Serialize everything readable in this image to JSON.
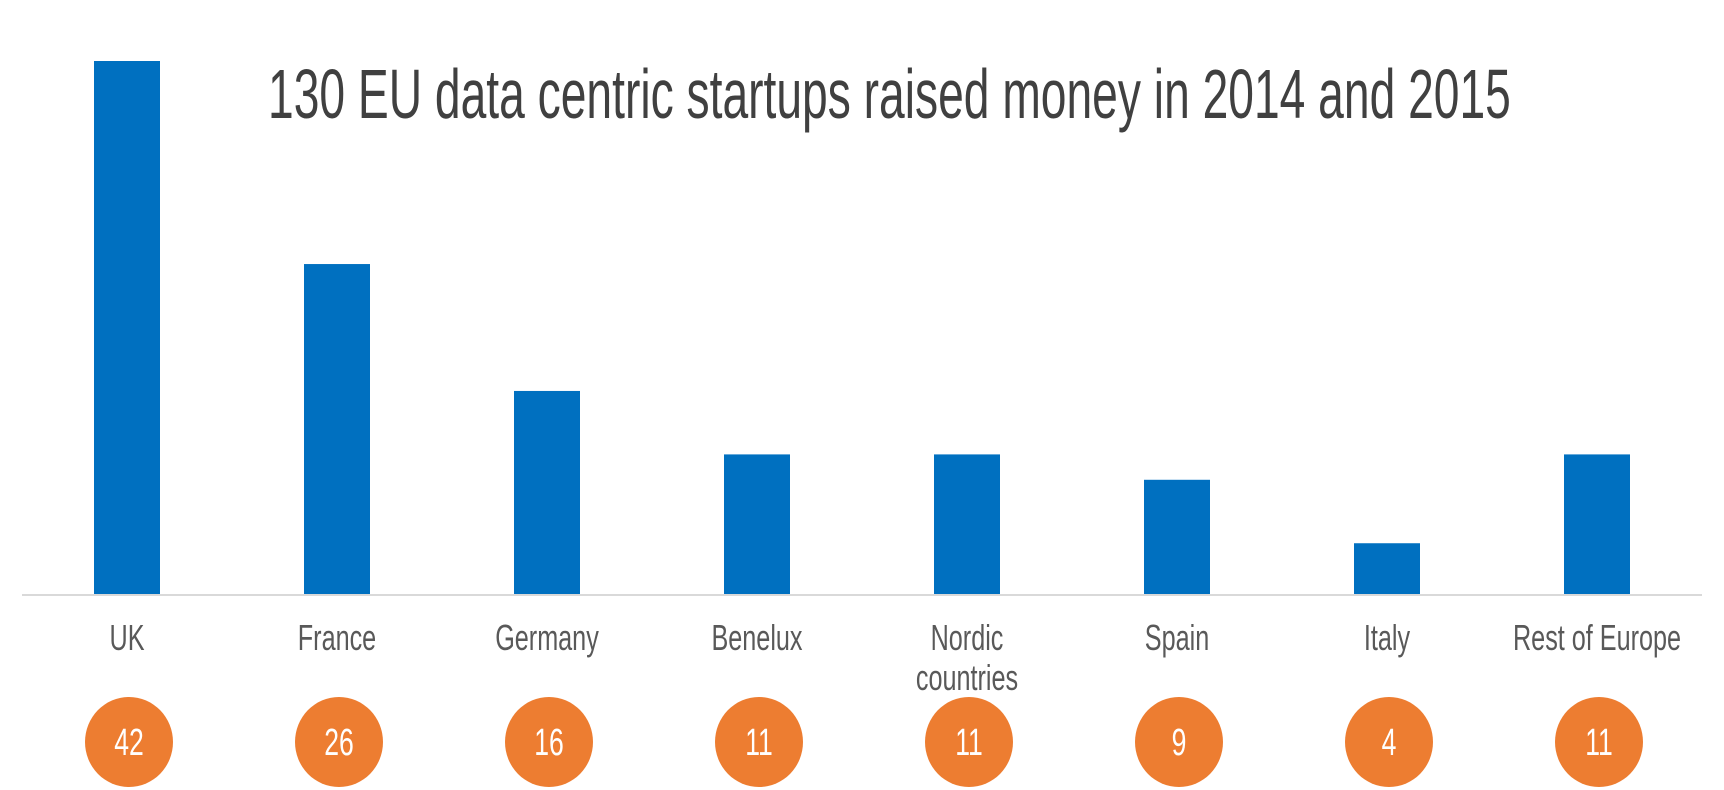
{
  "chart_data": {
    "type": "bar",
    "title": "130 EU data centric startups raised money in 2014 and 2015",
    "xlabel": "",
    "ylabel": "",
    "ylim": [
      0,
      42
    ],
    "grid": false,
    "legend": "none",
    "categories": [
      "UK",
      "France",
      "Germany",
      "Benelux",
      "Nordic countries",
      "Spain",
      "Italy",
      "Rest of Europe"
    ],
    "category_lines": [
      [
        "UK"
      ],
      [
        "France"
      ],
      [
        "Germany"
      ],
      [
        "Benelux"
      ],
      [
        "Nordic",
        "countries"
      ],
      [
        "Spain"
      ],
      [
        "Italy"
      ],
      [
        "Rest of Europe"
      ]
    ],
    "values": [
      42,
      26,
      16,
      11,
      11,
      9,
      4,
      11
    ],
    "value_badges": [
      "42",
      "26",
      "16",
      "11",
      "11",
      "9",
      "4",
      "11"
    ],
    "colors": {
      "bar": "#0070C0",
      "badge": "#ED7D31",
      "axis": "#D9D9D9",
      "title": "#404040",
      "label": "#595959"
    }
  }
}
